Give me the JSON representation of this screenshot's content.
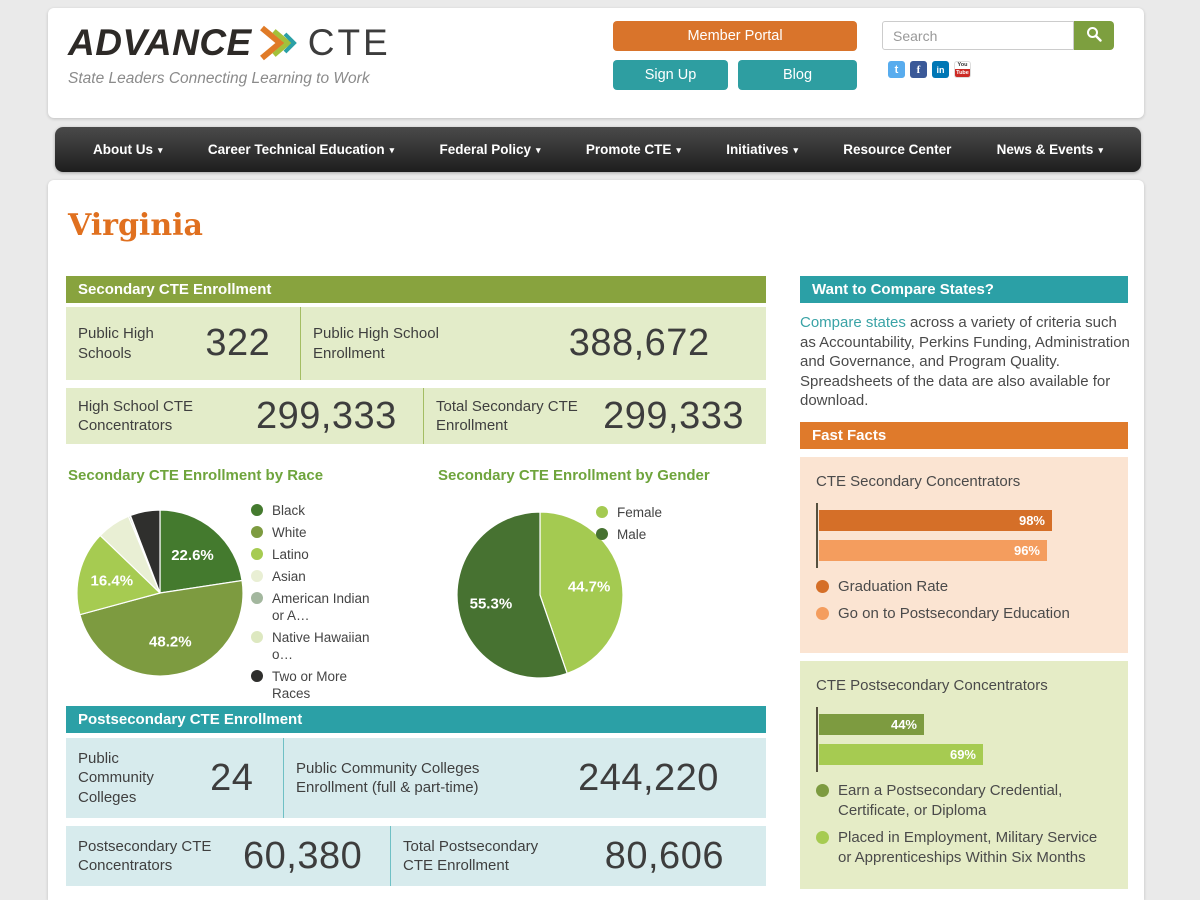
{
  "header": {
    "logo_text_1": "ADVANCE",
    "logo_text_2": "CTE",
    "tagline": "State Leaders Connecting Learning to Work",
    "buttons": {
      "member_portal": "Member Portal",
      "sign_up": "Sign Up",
      "blog": "Blog"
    },
    "search": {
      "placeholder": "Search"
    },
    "social": [
      "twitter",
      "facebook",
      "linkedin",
      "youtube"
    ]
  },
  "nav": {
    "items": [
      {
        "label": "About Us",
        "caret": true
      },
      {
        "label": "Career Technical Education",
        "caret": true
      },
      {
        "label": "Federal Policy",
        "caret": true
      },
      {
        "label": "Promote CTE",
        "caret": true
      },
      {
        "label": "Initiatives",
        "caret": true
      },
      {
        "label": "Resource Center",
        "caret": false
      },
      {
        "label": "News & Events",
        "caret": true
      }
    ]
  },
  "page": {
    "title": "Virginia"
  },
  "secondary": {
    "header": "Secondary CTE Enrollment",
    "stats": [
      [
        {
          "label": "Public High Schools",
          "value": "322"
        },
        {
          "label": "Public High School Enrollment",
          "value": "388,672"
        }
      ],
      [
        {
          "label": "High School CTE Concentrators",
          "value": "299,333"
        },
        {
          "label": "Total Secondary CTE Enrollment",
          "value": "299,333"
        }
      ]
    ]
  },
  "postsecondary": {
    "header": "Postsecondary CTE Enrollment",
    "stats": [
      [
        {
          "label": "Public Community Colleges",
          "value": "24"
        },
        {
          "label": "Public Community Colleges Enrollment (full & part-time)",
          "value": "244,220"
        }
      ],
      [
        {
          "label": "Postsecondary CTE Concentrators",
          "value": "60,380"
        },
        {
          "label": "Total Postsecondary CTE Enrollment",
          "value": "80,606"
        }
      ]
    ]
  },
  "sidebar": {
    "compare": {
      "header": "Want to Compare States?",
      "link_text": "Compare states",
      "text": " across a variety of criteria such as Accountability, Perkins Funding, Administration and Governance, and Program Quality. Spreadsheets of the data are also available for download."
    },
    "fast_facts": {
      "header": "Fast Facts"
    }
  },
  "colors": {
    "accent_orange": "#d9742b",
    "accent_teal": "#2ba0a6",
    "accent_olive": "#88a33e",
    "search_green": "#7d9f3f",
    "title_orange": "#e0701f",
    "chart_title_green": "#6ea43c"
  },
  "chart_data": [
    {
      "id": "race_pie",
      "type": "pie",
      "title": "Secondary CTE Enrollment by Race",
      "legend_position": "right",
      "slices": [
        {
          "label": "Black",
          "value": 22.6,
          "display": "22.6%",
          "color": "#447a2e",
          "show_label": true
        },
        {
          "label": "White",
          "value": 48.2,
          "display": "48.2%",
          "color": "#7d9b40",
          "show_label": true
        },
        {
          "label": "Latino",
          "value": 16.4,
          "display": "16.4%",
          "color": "#a6cb51",
          "show_label": true
        },
        {
          "label": "Asian",
          "value": 6.6,
          "display": "6.6%",
          "color": "#e9efd4",
          "show_label": false
        },
        {
          "label": "American Indian or A…",
          "value": 0.3,
          "display": "0.3%",
          "color": "#a3b79e",
          "show_label": false
        },
        {
          "label": "Native Hawaiian o…",
          "value": 0.1,
          "display": "0.1%",
          "color": "#dde8c0",
          "show_label": false
        },
        {
          "label": "Two or More Races",
          "value": 5.8,
          "display": "5.8%",
          "color": "#2f2f2d",
          "show_label": true
        }
      ]
    },
    {
      "id": "gender_pie",
      "type": "pie",
      "title": "Secondary CTE Enrollment by Gender",
      "legend_position": "right",
      "slices": [
        {
          "label": "Female",
          "value": 44.7,
          "display": "44.7%",
          "color": "#a4ca51",
          "show_label": true
        },
        {
          "label": "Male",
          "value": 55.3,
          "display": "55.3%",
          "color": "#477231",
          "show_label": true
        }
      ]
    },
    {
      "id": "secondary_bars",
      "type": "bar",
      "title": "CTE Secondary Concentrators",
      "xlim": [
        0,
        100
      ],
      "bars": [
        {
          "label": "Graduation Rate",
          "value": 98,
          "display": "98%",
          "color": "#d56f28"
        },
        {
          "label": "Go on to Postsecondary Education",
          "value": 96,
          "display": "96%",
          "color": "#f49d5e"
        }
      ]
    },
    {
      "id": "postsecondary_bars",
      "type": "bar",
      "title": "CTE Postsecondary Concentrators",
      "xlim": [
        0,
        100
      ],
      "bars": [
        {
          "label": "Earn a Postsecondary Credential, Certificate, or Diploma",
          "value": 44,
          "display": "44%",
          "color": "#7d9b40"
        },
        {
          "label": "Placed in Employment, Military Service or Apprenticeships Within Six Months",
          "value": 69,
          "display": "69%",
          "color": "#a6cb51"
        }
      ]
    }
  ]
}
